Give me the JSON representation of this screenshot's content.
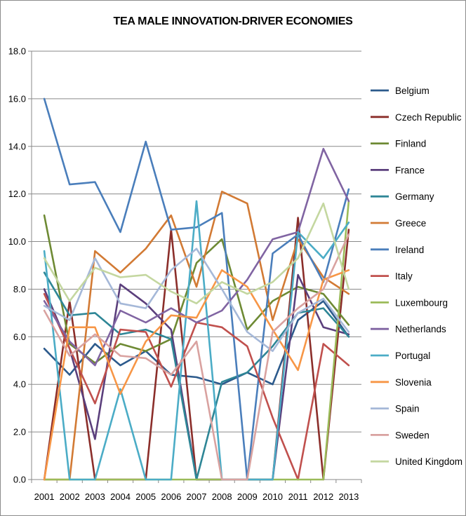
{
  "chart_data": {
    "type": "line",
    "title": "TEA MALE INNOVATION-DRIVER ECONOMIES",
    "xlabel": "",
    "ylabel": "",
    "x": [
      "2001",
      "2002",
      "2003",
      "2004",
      "2005",
      "2006",
      "2007",
      "2008",
      "2009",
      "2010",
      "2011",
      "2012",
      "2013"
    ],
    "ylim": [
      0,
      18
    ],
    "y_ticks": [
      "0.0",
      "2.0",
      "4.0",
      "6.0",
      "8.0",
      "10.0",
      "12.0",
      "14.0",
      "16.0",
      "18.0"
    ],
    "grid": "horizontal",
    "legend_position": "right",
    "series": [
      {
        "name": "Belgium",
        "color": "#2c5a8c",
        "values": [
          5.5,
          4.4,
          5.7,
          4.8,
          5.4,
          4.4,
          4.3,
          4.0,
          4.5,
          4.0,
          6.7,
          7.5,
          6.0
        ]
      },
      {
        "name": "Czech Republic",
        "color": "#8b2e2a",
        "values": [
          0.0,
          7.5,
          0.0,
          0.0,
          0.0,
          10.5,
          0.0,
          0.0,
          0.0,
          0.0,
          11.0,
          0.0,
          10.5
        ]
      },
      {
        "name": "Finland",
        "color": "#6e8a34",
        "values": [
          11.1,
          5.7,
          4.9,
          5.7,
          5.4,
          5.9,
          9.1,
          10.1,
          6.3,
          7.5,
          8.1,
          7.8,
          6.5
        ]
      },
      {
        "name": "France",
        "color": "#5b3f7c",
        "values": [
          8.0,
          5.5,
          1.7,
          8.2,
          7.4,
          6.3,
          0.0,
          0.0,
          0.0,
          0.0,
          8.6,
          6.4,
          6.1
        ]
      },
      {
        "name": "Germany",
        "color": "#2e8696",
        "values": [
          8.7,
          6.9,
          7.0,
          6.1,
          6.3,
          5.9,
          0.0,
          4.1,
          4.5,
          5.6,
          7.0,
          7.2,
          6.0
        ]
      },
      {
        "name": "Greece",
        "color": "#d27a34",
        "values": [
          0.0,
          0.0,
          9.6,
          8.7,
          9.7,
          11.1,
          8.1,
          12.1,
          11.6,
          6.7,
          10.1,
          8.5,
          7.8
        ]
      },
      {
        "name": "Ireland",
        "color": "#4a7ebb",
        "values": [
          16.0,
          12.4,
          12.5,
          10.4,
          14.2,
          10.5,
          10.6,
          11.2,
          0.0,
          9.5,
          10.3,
          8.3,
          12.2
        ]
      },
      {
        "name": "Italy",
        "color": "#c0504d",
        "values": [
          7.8,
          5.5,
          3.2,
          6.3,
          6.2,
          3.9,
          6.6,
          6.4,
          5.6,
          2.6,
          0.0,
          5.7,
          4.8
        ]
      },
      {
        "name": "Luxembourg",
        "color": "#9bbb59",
        "values": [
          0.0,
          0.0,
          0.0,
          0.0,
          0.0,
          0.0,
          0.0,
          0.0,
          0.0,
          0.0,
          0.0,
          0.0,
          11.7
        ]
      },
      {
        "name": "Netherlands",
        "color": "#8064a2",
        "values": [
          7.5,
          5.8,
          4.8,
          7.1,
          6.6,
          7.2,
          6.6,
          7.1,
          8.4,
          10.1,
          10.4,
          13.9,
          11.7
        ]
      },
      {
        "name": "Portugal",
        "color": "#4bacc6",
        "values": [
          9.6,
          0.0,
          0.0,
          3.8,
          0.0,
          0.0,
          11.7,
          0.0,
          0.0,
          0.0,
          10.4,
          9.3,
          10.8
        ]
      },
      {
        "name": "Slovenia",
        "color": "#f79646",
        "values": [
          0.0,
          6.4,
          6.4,
          3.6,
          5.8,
          6.9,
          6.8,
          8.8,
          8.1,
          6.3,
          4.6,
          8.4,
          8.8
        ]
      },
      {
        "name": "Spain",
        "color": "#a5b8d8",
        "values": [
          7.3,
          6.7,
          9.3,
          7.4,
          7.2,
          8.8,
          9.7,
          8.0,
          6.2,
          5.4,
          7.0,
          7.6,
          6.2
        ]
      },
      {
        "name": "Sweden",
        "color": "#d9a2a0",
        "values": [
          7.1,
          5.2,
          6.1,
          5.2,
          5.1,
          4.4,
          5.8,
          0.0,
          0.0,
          6.2,
          7.2,
          8.0,
          10.3
        ]
      },
      {
        "name": "United Kingdom",
        "color": "#c4d7a0",
        "values": [
          9.3,
          7.5,
          8.9,
          8.5,
          8.6,
          7.9,
          7.4,
          8.3,
          7.8,
          8.3,
          9.3,
          11.6,
          8.0
        ]
      }
    ]
  }
}
